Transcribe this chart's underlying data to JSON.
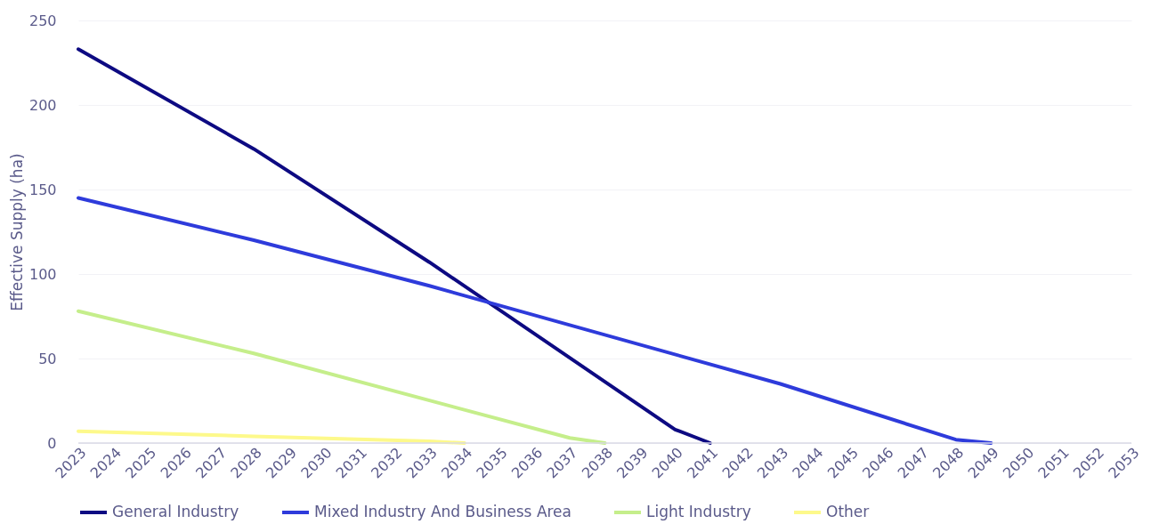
{
  "chart_data": {
    "type": "line",
    "ylabel": "Effective Supply (ha)",
    "xlim": [
      2023,
      2053
    ],
    "xticks": [
      2023,
      2024,
      2025,
      2026,
      2027,
      2028,
      2029,
      2030,
      2031,
      2032,
      2033,
      2034,
      2035,
      2036,
      2037,
      2038,
      2039,
      2040,
      2041,
      2042,
      2043,
      2044,
      2045,
      2046,
      2047,
      2048,
      2049,
      2050,
      2051,
      2052,
      2053
    ],
    "ylim": [
      0,
      250
    ],
    "yticks": [
      0,
      50,
      100,
      150,
      200,
      250
    ],
    "grid": "y",
    "legend": "bottom",
    "marker": "none",
    "line_style": "solid",
    "series": [
      {
        "name": "General Industry",
        "color": "#0d0a82",
        "x": [
          2023,
          2028,
          2033,
          2040,
          2041
        ],
        "values": [
          233,
          174,
          107,
          8,
          0
        ]
      },
      {
        "name": "Mixed Industry And Business Area",
        "color": "#2e3bdb",
        "x": [
          2023,
          2028,
          2033,
          2043,
          2048,
          2049
        ],
        "values": [
          145,
          120,
          93,
          35,
          2,
          0
        ]
      },
      {
        "name": "Light Industry",
        "color": "#c5ee8b",
        "x": [
          2023,
          2028,
          2037,
          2038
        ],
        "values": [
          78,
          53,
          3,
          0
        ]
      },
      {
        "name": "Other",
        "color": "#fdf98b",
        "x": [
          2023,
          2028,
          2033,
          2034
        ],
        "values": [
          7,
          4,
          1,
          0
        ]
      }
    ]
  }
}
